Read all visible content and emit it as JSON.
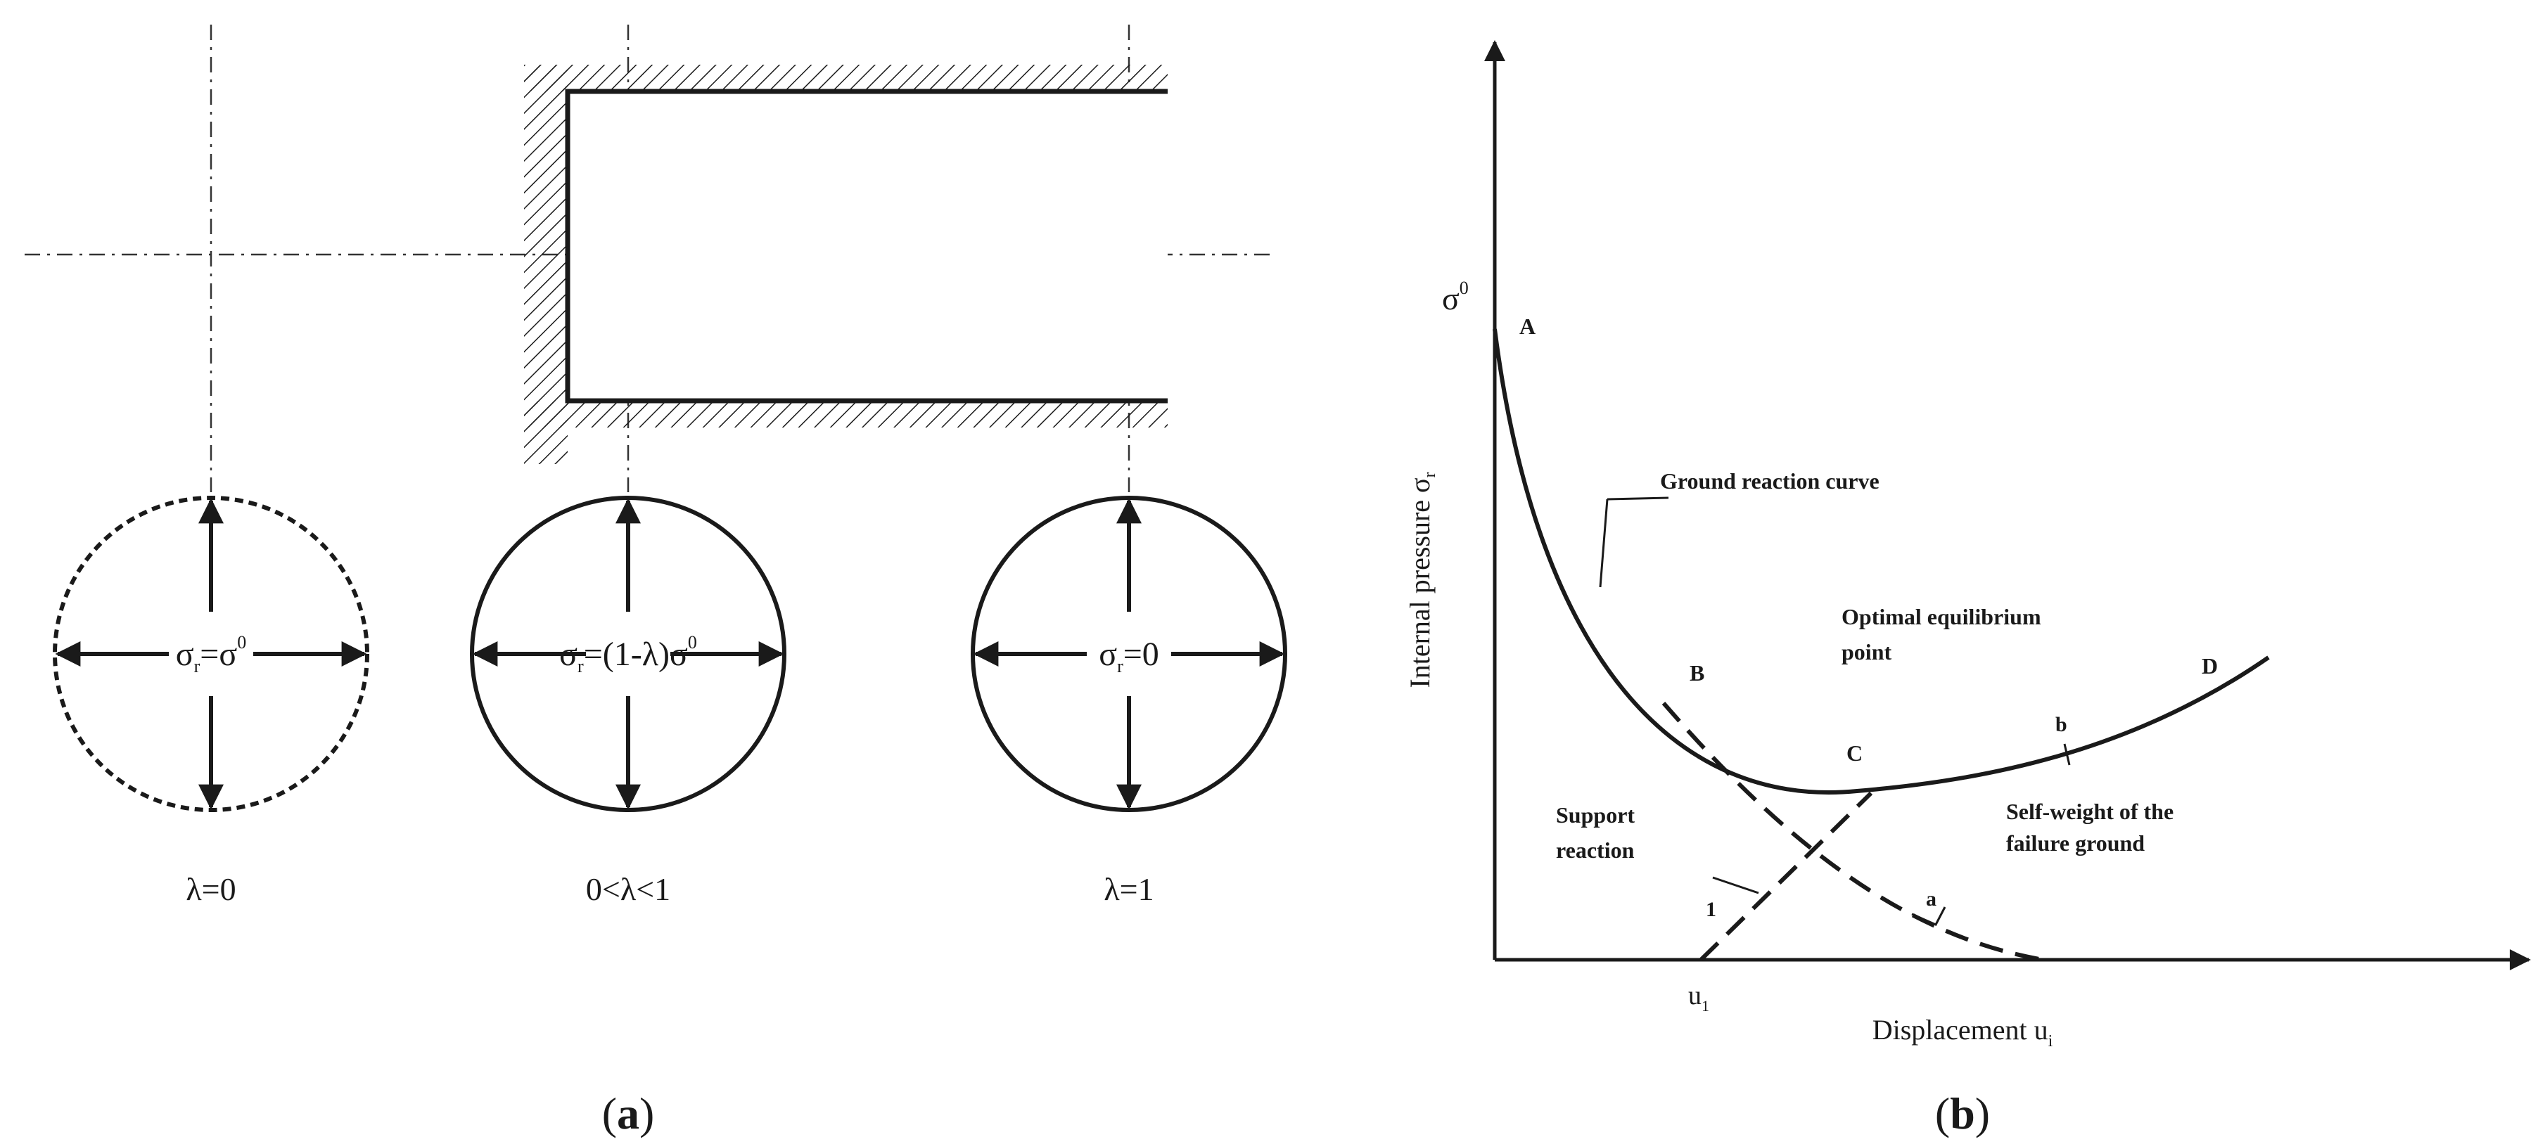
{
  "panel_a": {
    "caption_letter": "a",
    "states": [
      {
        "symbol_sigma": "σ",
        "symbol_sub": "r",
        "relation": "=σ",
        "relation_sup": "0",
        "tail": "",
        "lambda_label": "λ=0",
        "boundary": "dashed"
      },
      {
        "symbol_sigma": "σ",
        "symbol_sub": "r",
        "relation": "=(1-λ)σ",
        "relation_sup": "0",
        "tail": "",
        "lambda_label": "0<λ<1",
        "boundary": "solid"
      },
      {
        "symbol_sigma": "σ",
        "symbol_sub": "r",
        "relation": "=0",
        "relation_sup": "",
        "tail": "",
        "lambda_label": "λ=1",
        "boundary": "solid"
      }
    ]
  },
  "panel_b": {
    "caption_letter": "b",
    "y_axis_symbol": "σ",
    "y_axis_symbol_sup": "0",
    "y_axis_label": "Internal pressure σ",
    "y_axis_label_sub": "r",
    "x_axis_label": "Displacement u",
    "x_axis_label_sub": "i",
    "x_tick_label": "u",
    "x_tick_label_sub": "1",
    "points": {
      "A": "A",
      "B": "B",
      "C": "C",
      "D": "D"
    },
    "annotations": {
      "ground_reaction_curve": "Ground reaction curve",
      "optimal_line1": "Optimal equilibrium",
      "optimal_line2": "point",
      "support_line1": "Support",
      "support_line2": "reaction",
      "self_weight_line1": "Self-weight of the",
      "self_weight_line2": "failure ground",
      "curve_a": "a",
      "curve_b": "b",
      "curve_1": "1"
    }
  }
}
